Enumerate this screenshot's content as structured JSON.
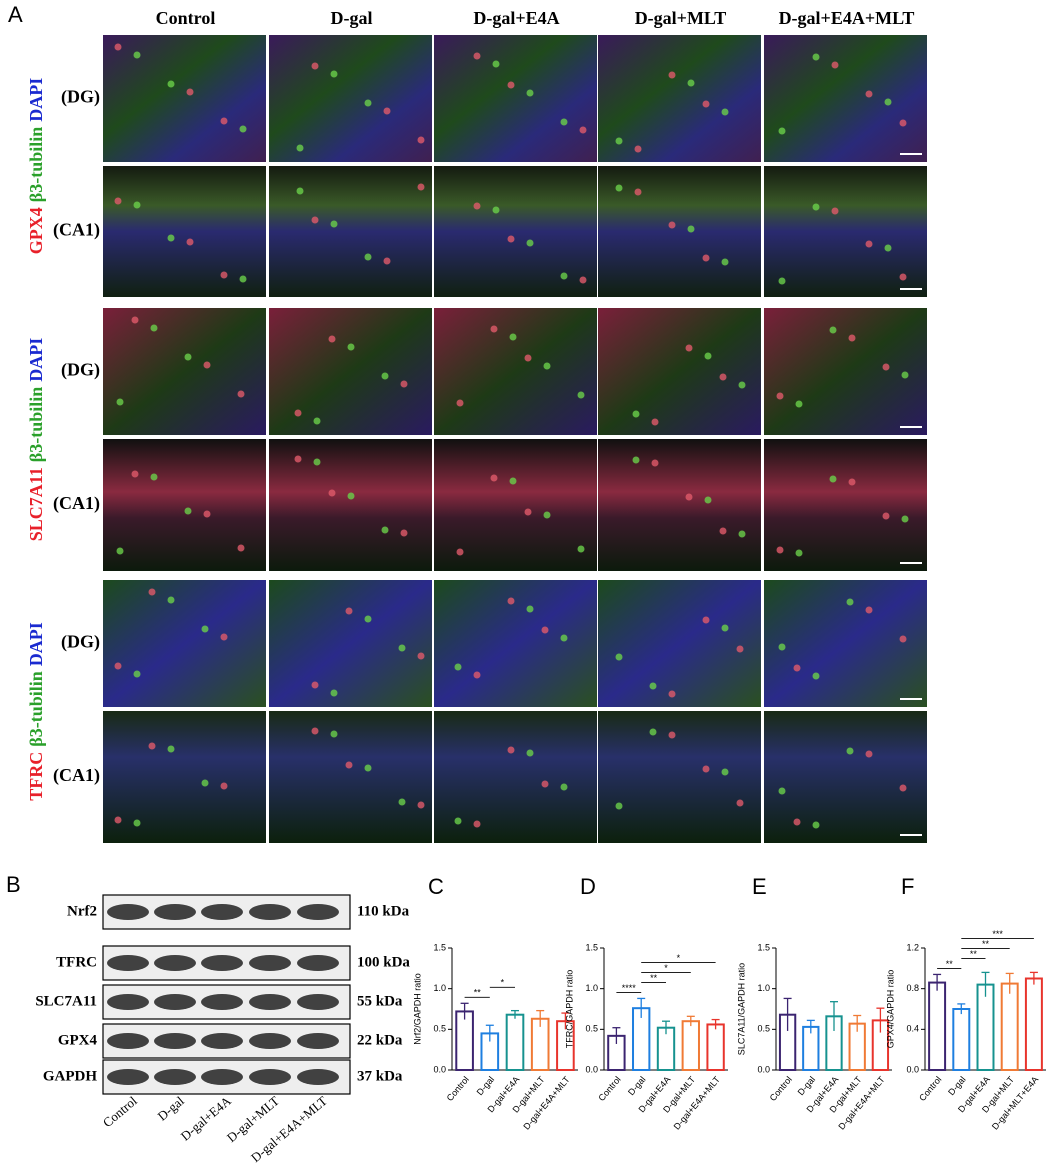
{
  "figure": {
    "panel_a": {
      "letter": "A",
      "columns": [
        "Control",
        "D-gal",
        "D-gal+E4A",
        "D-gal+MLT",
        "D-gal+E4A+MLT"
      ],
      "regions": [
        "(DG)",
        "(CA1)"
      ],
      "stains": [
        {
          "protein": "GPX4",
          "marker": "β3-tubilin",
          "nucleus": "DAPI"
        },
        {
          "protein": "SLC7A11",
          "marker": "β3-tubilin",
          "nucleus": "DAPI"
        },
        {
          "protein": "TFRC",
          "marker": "β3-tubilin",
          "nucleus": "DAPI"
        }
      ]
    },
    "panel_b": {
      "letter": "B",
      "proteins": [
        "Nrf2",
        "TFRC",
        "SLC7A11",
        "GPX4",
        "GAPDH"
      ],
      "sizes": [
        "110 kDa",
        "100 kDa",
        "55 kDa",
        "22 kDa",
        "37 kDa"
      ],
      "lanes": [
        "Control",
        "D-gal",
        "D-gal+E4A",
        "D-gal+MLT",
        "D-gal+E4A+MLT"
      ]
    }
  },
  "chart_data": [
    {
      "type": "bar",
      "panel": "C",
      "ylabel": "Nrf2/GAPDH ratio",
      "categories": [
        "Control",
        "D-gal",
        "D-gal+E4A",
        "D-gal+MLT",
        "D-gal+E4A+MLT"
      ],
      "values": [
        0.72,
        0.45,
        0.68,
        0.63,
        0.6
      ],
      "errors": [
        0.1,
        0.1,
        0.05,
        0.1,
        0.1
      ],
      "colors": [
        "#3b2470",
        "#1e7fe0",
        "#16928f",
        "#f07a35",
        "#e8342c"
      ],
      "ylim": [
        0,
        1.5
      ],
      "yticks": [
        {
          "value": 0,
          "label": "0.0"
        },
        0.5,
        {
          "value": 1,
          "label": "1.0"
        },
        1.5
      ],
      "significance": [
        {
          "pair": [
            0,
            1
          ],
          "label": "**"
        },
        {
          "pair": [
            1,
            2
          ],
          "label": "*"
        }
      ]
    },
    {
      "type": "bar",
      "panel": "D",
      "ylabel": "TFRC/GAPDH ratio",
      "categories": [
        "Control",
        "D-gal",
        "D-gal+E4A",
        "D-gal+MLT",
        "D-gal+E4A+MLT"
      ],
      "values": [
        0.42,
        0.76,
        0.52,
        0.6,
        0.56
      ],
      "errors": [
        0.1,
        0.12,
        0.08,
        0.06,
        0.06
      ],
      "colors": [
        "#3b2470",
        "#1e7fe0",
        "#16928f",
        "#f07a35",
        "#e8342c"
      ],
      "ylim": [
        0,
        1.5
      ],
      "yticks": [
        {
          "value": 0,
          "label": "0.0"
        },
        0.5,
        {
          "value": 1,
          "label": "1.0"
        },
        1.5
      ],
      "significance": [
        {
          "pair": [
            0,
            1
          ],
          "label": "****"
        },
        {
          "pair": [
            1,
            2
          ],
          "label": "**"
        },
        {
          "pair": [
            1,
            3
          ],
          "label": "*"
        },
        {
          "pair": [
            1,
            4
          ],
          "label": "*"
        }
      ]
    },
    {
      "type": "bar",
      "panel": "E",
      "ylabel": "SLC7A11/GAPDH ratio",
      "categories": [
        "Control",
        "D-gal",
        "D-gal+E4A",
        "D-gal+MLT",
        "D-gal+E4A+MLT"
      ],
      "values": [
        0.68,
        0.53,
        0.66,
        0.57,
        0.61
      ],
      "errors": [
        0.2,
        0.08,
        0.18,
        0.1,
        0.15
      ],
      "colors": [
        "#3b2470",
        "#1e7fe0",
        "#16928f",
        "#f07a35",
        "#e8342c"
      ],
      "ylim": [
        0,
        1.5
      ],
      "yticks": [
        {
          "value": 0,
          "label": "0.0"
        },
        0.5,
        {
          "value": 1,
          "label": "1.0"
        },
        1.5
      ],
      "significance": []
    },
    {
      "type": "bar",
      "panel": "F",
      "ylabel": "GPX4/GAPDH ratio",
      "categories": [
        "Control",
        "D-gal",
        "D-gal+E4A",
        "D-gal+MLT",
        "D-gal+MLT+E4A"
      ],
      "values": [
        0.86,
        0.6,
        0.84,
        0.85,
        0.9
      ],
      "errors": [
        0.08,
        0.05,
        0.12,
        0.1,
        0.06
      ],
      "colors": [
        "#3b2470",
        "#1e7fe0",
        "#16928f",
        "#f07a35",
        "#e8342c"
      ],
      "ylim": [
        0,
        1.2
      ],
      "yticks": [
        {
          "value": 0,
          "label": "0.0"
        },
        0.4,
        0.8,
        1.2
      ],
      "significance": [
        {
          "pair": [
            0,
            1
          ],
          "label": "**"
        },
        {
          "pair": [
            1,
            2
          ],
          "label": "**"
        },
        {
          "pair": [
            1,
            3
          ],
          "label": "**"
        },
        {
          "pair": [
            1,
            4
          ],
          "label": "***"
        }
      ]
    }
  ]
}
